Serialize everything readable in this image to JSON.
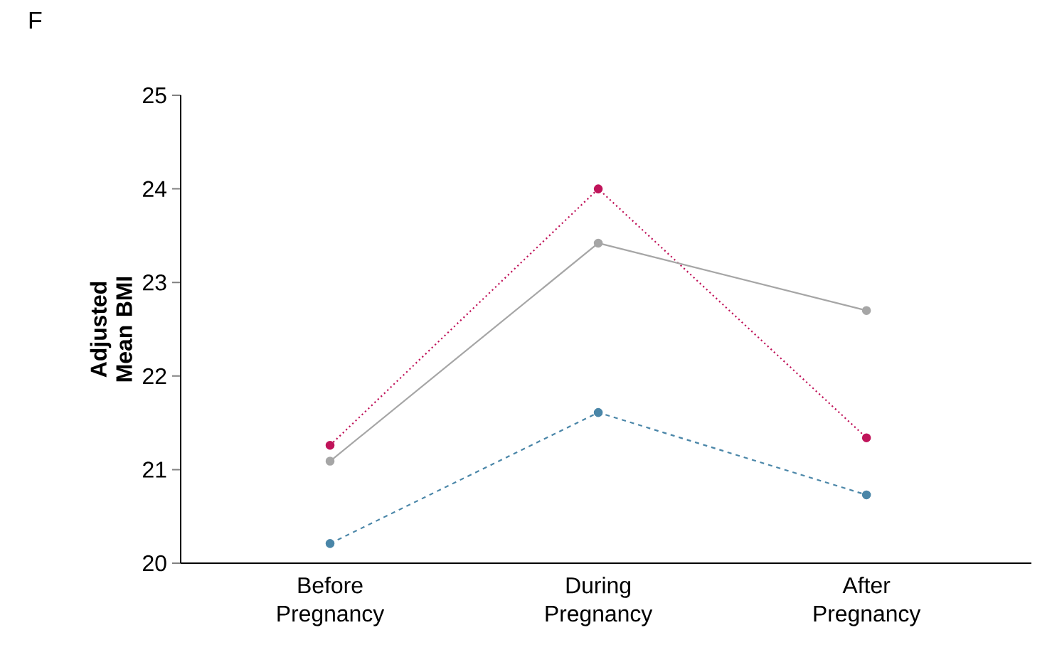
{
  "chart_data": {
    "type": "line",
    "title": "F",
    "ylabel": "Adjusted Mean BMI",
    "categories": [
      "Before Pregnancy",
      "During Pregnancy",
      "After Pregnancy"
    ],
    "series": [
      {
        "color": "#c0145a",
        "line_style": "dotted",
        "values": [
          21.26,
          24.0,
          21.34
        ]
      },
      {
        "color": "#a6a6a6",
        "line_style": "solid",
        "values": [
          21.09,
          23.42,
          22.7
        ]
      },
      {
        "color": "#4a86a8",
        "line_style": "dashed",
        "values": [
          20.21,
          21.61,
          20.73
        ]
      }
    ],
    "ylim": [
      20,
      25
    ],
    "yticks": [
      20,
      21,
      22,
      23,
      24,
      25
    ],
    "marker": "circle",
    "grid": false
  }
}
